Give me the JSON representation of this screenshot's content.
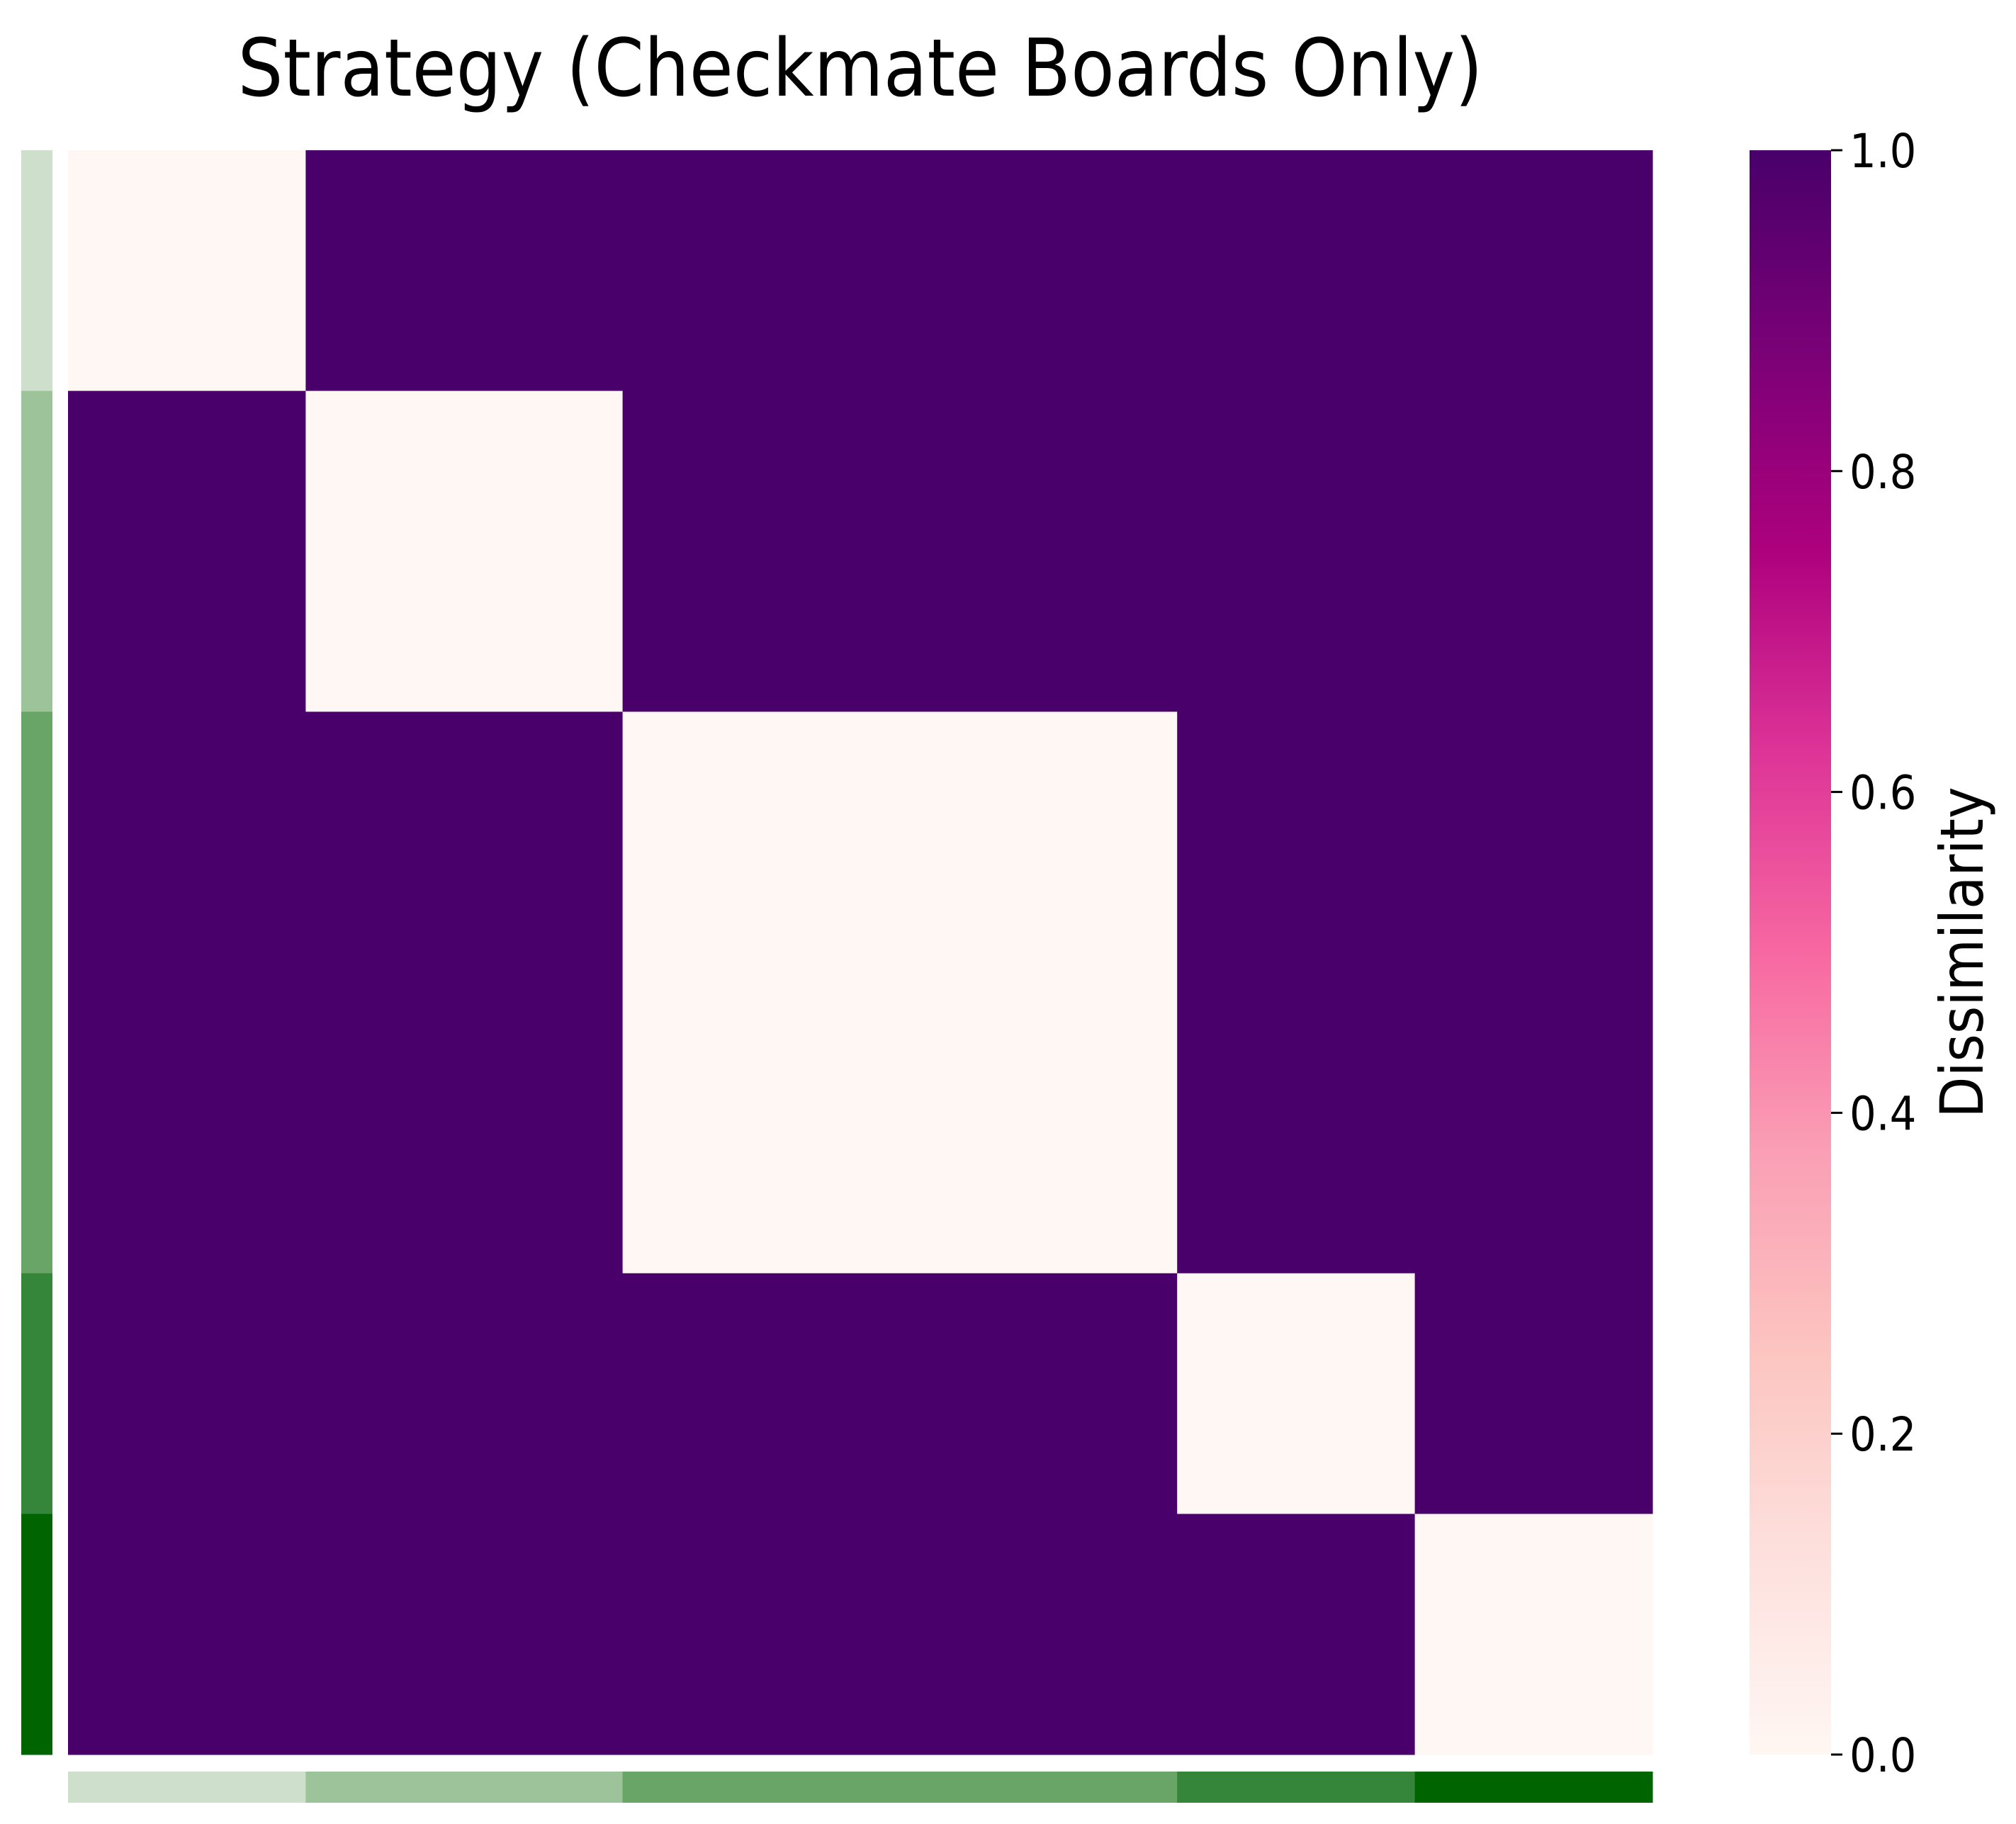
{
  "chart_data": {
    "type": "heatmap",
    "title": "Strategy (Checkmate Boards Only)",
    "xlabel": "",
    "ylabel": "",
    "group_sizes": [
      3,
      4,
      7,
      3,
      3
    ],
    "group_colors": [
      "#cee0cb",
      "#9cc399",
      "#68a566",
      "#35853a",
      "#006400"
    ],
    "within_group_value": 0.0,
    "between_group_value": 1.0,
    "colorbar": {
      "label": "Dissimilarity",
      "vmin": 0.0,
      "vmax": 1.0,
      "ticks": [
        "0.0",
        "0.2",
        "0.4",
        "0.6",
        "0.8",
        "1.0"
      ],
      "colors": [
        "#fff7f3",
        "#fde0dd",
        "#fcc5c0",
        "#fa9fb5",
        "#f768a1",
        "#dd3497",
        "#ae017e",
        "#7a0177",
        "#49006a"
      ]
    },
    "grid": false,
    "legend": "none"
  }
}
